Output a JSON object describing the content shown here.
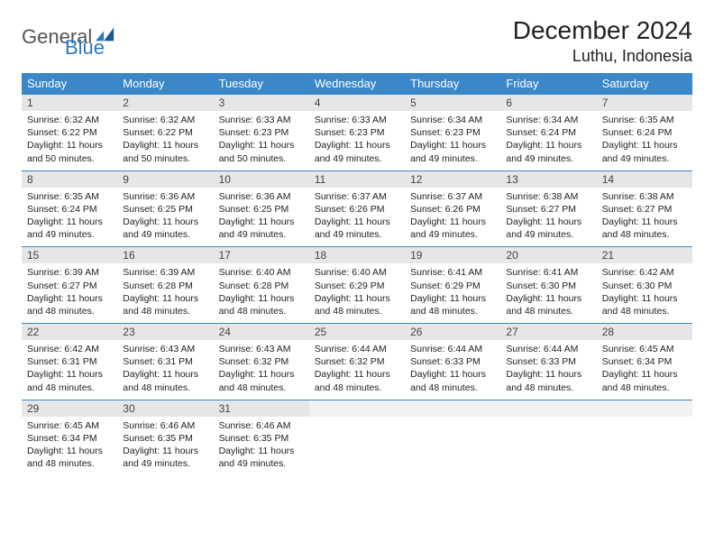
{
  "logo": {
    "text1": "General",
    "text2": "Blue"
  },
  "title": "December 2024",
  "location": "Luthu, Indonesia",
  "colors": {
    "header_bg": "#3b87c8",
    "header_text": "#ffffff",
    "daynum_bg": "#e6e6e6",
    "border": "#3b87c8",
    "logo_blue": "#2b78bd",
    "logo_gray": "#555555",
    "body_text": "#222222",
    "page_bg": "#ffffff"
  },
  "fonts": {
    "title_size_pt": 21,
    "location_size_pt": 14,
    "header_size_pt": 10,
    "daynum_size_pt": 9,
    "body_size_pt": 8
  },
  "weekdays": [
    "Sunday",
    "Monday",
    "Tuesday",
    "Wednesday",
    "Thursday",
    "Friday",
    "Saturday"
  ],
  "days": [
    {
      "n": "1",
      "sunrise": "Sunrise: 6:32 AM",
      "sunset": "Sunset: 6:22 PM",
      "daylight": "Daylight: 11 hours and 50 minutes."
    },
    {
      "n": "2",
      "sunrise": "Sunrise: 6:32 AM",
      "sunset": "Sunset: 6:22 PM",
      "daylight": "Daylight: 11 hours and 50 minutes."
    },
    {
      "n": "3",
      "sunrise": "Sunrise: 6:33 AM",
      "sunset": "Sunset: 6:23 PM",
      "daylight": "Daylight: 11 hours and 50 minutes."
    },
    {
      "n": "4",
      "sunrise": "Sunrise: 6:33 AM",
      "sunset": "Sunset: 6:23 PM",
      "daylight": "Daylight: 11 hours and 49 minutes."
    },
    {
      "n": "5",
      "sunrise": "Sunrise: 6:34 AM",
      "sunset": "Sunset: 6:23 PM",
      "daylight": "Daylight: 11 hours and 49 minutes."
    },
    {
      "n": "6",
      "sunrise": "Sunrise: 6:34 AM",
      "sunset": "Sunset: 6:24 PM",
      "daylight": "Daylight: 11 hours and 49 minutes."
    },
    {
      "n": "7",
      "sunrise": "Sunrise: 6:35 AM",
      "sunset": "Sunset: 6:24 PM",
      "daylight": "Daylight: 11 hours and 49 minutes."
    },
    {
      "n": "8",
      "sunrise": "Sunrise: 6:35 AM",
      "sunset": "Sunset: 6:24 PM",
      "daylight": "Daylight: 11 hours and 49 minutes."
    },
    {
      "n": "9",
      "sunrise": "Sunrise: 6:36 AM",
      "sunset": "Sunset: 6:25 PM",
      "daylight": "Daylight: 11 hours and 49 minutes."
    },
    {
      "n": "10",
      "sunrise": "Sunrise: 6:36 AM",
      "sunset": "Sunset: 6:25 PM",
      "daylight": "Daylight: 11 hours and 49 minutes."
    },
    {
      "n": "11",
      "sunrise": "Sunrise: 6:37 AM",
      "sunset": "Sunset: 6:26 PM",
      "daylight": "Daylight: 11 hours and 49 minutes."
    },
    {
      "n": "12",
      "sunrise": "Sunrise: 6:37 AM",
      "sunset": "Sunset: 6:26 PM",
      "daylight": "Daylight: 11 hours and 49 minutes."
    },
    {
      "n": "13",
      "sunrise": "Sunrise: 6:38 AM",
      "sunset": "Sunset: 6:27 PM",
      "daylight": "Daylight: 11 hours and 49 minutes."
    },
    {
      "n": "14",
      "sunrise": "Sunrise: 6:38 AM",
      "sunset": "Sunset: 6:27 PM",
      "daylight": "Daylight: 11 hours and 48 minutes."
    },
    {
      "n": "15",
      "sunrise": "Sunrise: 6:39 AM",
      "sunset": "Sunset: 6:27 PM",
      "daylight": "Daylight: 11 hours and 48 minutes."
    },
    {
      "n": "16",
      "sunrise": "Sunrise: 6:39 AM",
      "sunset": "Sunset: 6:28 PM",
      "daylight": "Daylight: 11 hours and 48 minutes."
    },
    {
      "n": "17",
      "sunrise": "Sunrise: 6:40 AM",
      "sunset": "Sunset: 6:28 PM",
      "daylight": "Daylight: 11 hours and 48 minutes."
    },
    {
      "n": "18",
      "sunrise": "Sunrise: 6:40 AM",
      "sunset": "Sunset: 6:29 PM",
      "daylight": "Daylight: 11 hours and 48 minutes."
    },
    {
      "n": "19",
      "sunrise": "Sunrise: 6:41 AM",
      "sunset": "Sunset: 6:29 PM",
      "daylight": "Daylight: 11 hours and 48 minutes."
    },
    {
      "n": "20",
      "sunrise": "Sunrise: 6:41 AM",
      "sunset": "Sunset: 6:30 PM",
      "daylight": "Daylight: 11 hours and 48 minutes."
    },
    {
      "n": "21",
      "sunrise": "Sunrise: 6:42 AM",
      "sunset": "Sunset: 6:30 PM",
      "daylight": "Daylight: 11 hours and 48 minutes."
    },
    {
      "n": "22",
      "sunrise": "Sunrise: 6:42 AM",
      "sunset": "Sunset: 6:31 PM",
      "daylight": "Daylight: 11 hours and 48 minutes."
    },
    {
      "n": "23",
      "sunrise": "Sunrise: 6:43 AM",
      "sunset": "Sunset: 6:31 PM",
      "daylight": "Daylight: 11 hours and 48 minutes."
    },
    {
      "n": "24",
      "sunrise": "Sunrise: 6:43 AM",
      "sunset": "Sunset: 6:32 PM",
      "daylight": "Daylight: 11 hours and 48 minutes."
    },
    {
      "n": "25",
      "sunrise": "Sunrise: 6:44 AM",
      "sunset": "Sunset: 6:32 PM",
      "daylight": "Daylight: 11 hours and 48 minutes."
    },
    {
      "n": "26",
      "sunrise": "Sunrise: 6:44 AM",
      "sunset": "Sunset: 6:33 PM",
      "daylight": "Daylight: 11 hours and 48 minutes."
    },
    {
      "n": "27",
      "sunrise": "Sunrise: 6:44 AM",
      "sunset": "Sunset: 6:33 PM",
      "daylight": "Daylight: 11 hours and 48 minutes."
    },
    {
      "n": "28",
      "sunrise": "Sunrise: 6:45 AM",
      "sunset": "Sunset: 6:34 PM",
      "daylight": "Daylight: 11 hours and 48 minutes."
    },
    {
      "n": "29",
      "sunrise": "Sunrise: 6:45 AM",
      "sunset": "Sunset: 6:34 PM",
      "daylight": "Daylight: 11 hours and 48 minutes."
    },
    {
      "n": "30",
      "sunrise": "Sunrise: 6:46 AM",
      "sunset": "Sunset: 6:35 PM",
      "daylight": "Daylight: 11 hours and 49 minutes."
    },
    {
      "n": "31",
      "sunrise": "Sunrise: 6:46 AM",
      "sunset": "Sunset: 6:35 PM",
      "daylight": "Daylight: 11 hours and 49 minutes."
    }
  ],
  "trailing_empty": 4
}
